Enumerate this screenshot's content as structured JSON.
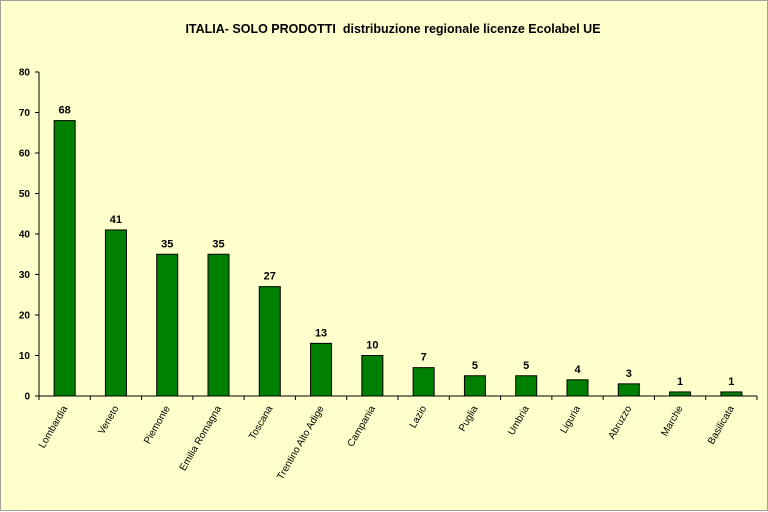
{
  "colors": {
    "background": "#FFFFCC",
    "bar": "#008000",
    "bar_border": "#000000",
    "axis": "#000000",
    "frame": "#A0A0A0"
  },
  "chart_data": {
    "type": "bar",
    "title": "ITALIA- SOLO PRODOTTI  distribuzione regionale licenze Ecolabel UE",
    "categories": [
      "Lombardia",
      "Veneto",
      "Piemonte",
      "Emilia Romagna",
      "Toscana",
      "Trentino Alto Adige",
      "Campania",
      "Lazio",
      "Puglia",
      "Umbria",
      "Liguria",
      "Abruzzo",
      "Marche",
      "Basilicata"
    ],
    "values": [
      68,
      41,
      35,
      35,
      27,
      13,
      10,
      7,
      5,
      5,
      4,
      3,
      1,
      1
    ],
    "ylim": [
      0,
      80
    ],
    "yticks": [
      0,
      10,
      20,
      30,
      40,
      50,
      60,
      70,
      80
    ],
    "grid": false,
    "data_labels": true
  }
}
